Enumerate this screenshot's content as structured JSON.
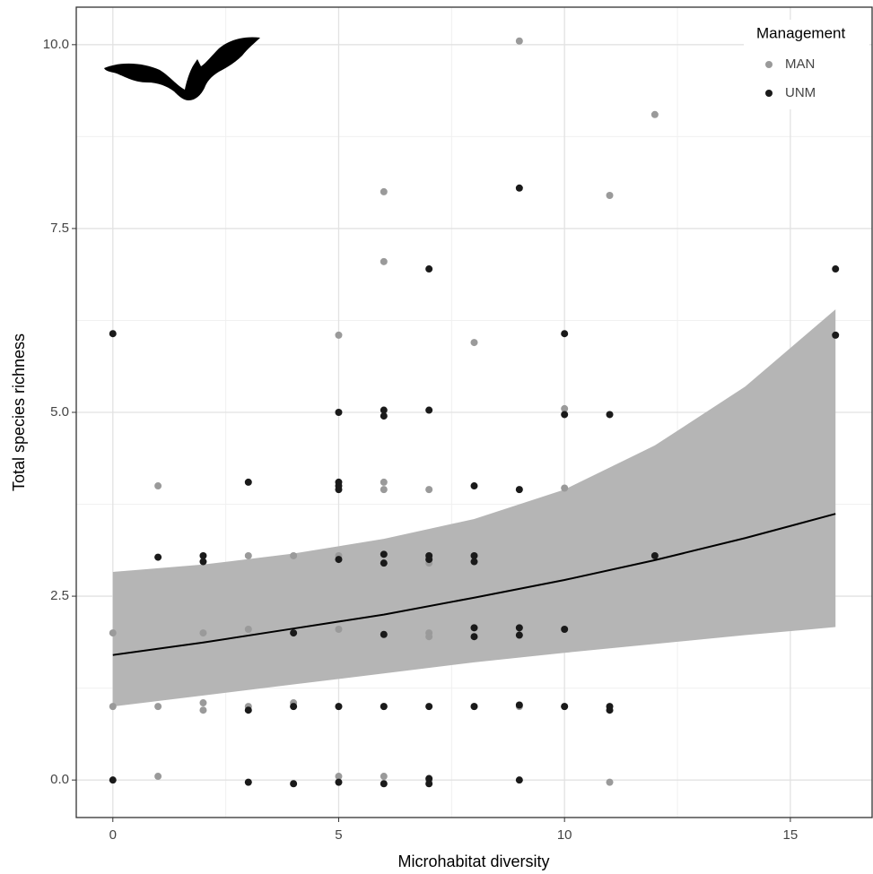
{
  "chart_data": {
    "type": "scatter",
    "x_label": "Microhabitat diversity",
    "y_label": "Total species  richness",
    "xlim": [
      -0.81,
      16.81
    ],
    "ylim": [
      -0.51,
      10.51
    ],
    "xticks": [
      0,
      5,
      10,
      15
    ],
    "yticks": [
      {
        "value": 0,
        "label": "0.0"
      },
      2.5,
      {
        "value": 5,
        "label": "5.0"
      },
      7.5,
      {
        "value": 10,
        "label": "10.0"
      }
    ],
    "grid": true,
    "minor_grid": true,
    "legend_title": "Management",
    "legend_position": "top-right",
    "series": [
      {
        "name": "MAN",
        "color": "#9a9a9a",
        "x": [
          0,
          0,
          1,
          1,
          1,
          2,
          2,
          2,
          3,
          3,
          3,
          4,
          4,
          5,
          5,
          5,
          5,
          5,
          6,
          6,
          6,
          6,
          6,
          6,
          7,
          7,
          7,
          7,
          7,
          8,
          8,
          9,
          9,
          10,
          10,
          10,
          11,
          11,
          12
        ],
        "y": [
          2.0,
          1.0,
          4.0,
          1.0,
          0.05,
          2.0,
          1.05,
          0.95,
          2.05,
          1.0,
          3.05,
          3.05,
          1.05,
          6.05,
          3.05,
          2.05,
          1.0,
          0.05,
          8.0,
          7.05,
          4.05,
          3.95,
          0.05,
          1.0,
          3.95,
          2.0,
          1.95,
          2.95,
          0.0,
          5.95,
          1.0,
          10.05,
          1.0,
          5.05,
          3.97,
          1.0,
          7.95,
          -0.03,
          9.05
        ]
      },
      {
        "name": "UNM",
        "color": "#1a1a1a",
        "x": [
          0,
          0,
          1,
          2,
          2,
          3,
          3,
          3,
          4,
          4,
          4,
          5,
          5,
          5,
          5,
          5,
          5,
          5,
          6,
          6,
          6,
          6,
          6,
          6,
          6,
          7,
          7,
          7,
          7,
          7,
          7,
          7,
          8,
          8,
          8,
          8,
          8,
          8,
          9,
          9,
          9,
          9,
          9,
          9,
          10,
          10,
          10,
          10,
          11,
          11,
          11,
          12,
          16,
          16
        ],
        "y": [
          6.07,
          0.0,
          3.03,
          3.05,
          2.97,
          4.05,
          0.95,
          -0.03,
          2.0,
          1.0,
          -0.05,
          5.0,
          4.05,
          3.95,
          4.0,
          3.0,
          1.0,
          -0.03,
          5.03,
          4.95,
          3.07,
          2.95,
          1.98,
          1.0,
          -0.05,
          6.95,
          5.03,
          3.05,
          3.0,
          1.0,
          0.02,
          -0.05,
          4.0,
          3.05,
          2.97,
          2.07,
          1.95,
          1.0,
          8.05,
          3.95,
          2.07,
          1.97,
          1.02,
          0.0,
          6.07,
          4.97,
          2.05,
          1.0,
          4.97,
          1.0,
          0.95,
          3.05,
          6.95,
          6.05
        ]
      }
    ],
    "fit": {
      "color": "#000000",
      "band_color": "#b5b5b5",
      "x": [
        0,
        2,
        4,
        6,
        8,
        10,
        12,
        14,
        16
      ],
      "values": [
        1.7,
        1.87,
        2.06,
        2.25,
        2.48,
        2.72,
        2.99,
        3.29,
        3.62
      ],
      "lower": [
        1.0,
        1.15,
        1.3,
        1.45,
        1.6,
        1.73,
        1.85,
        1.97,
        2.08
      ],
      "upper": [
        2.83,
        2.93,
        3.08,
        3.28,
        3.55,
        3.95,
        4.55,
        5.35,
        6.4
      ]
    }
  }
}
